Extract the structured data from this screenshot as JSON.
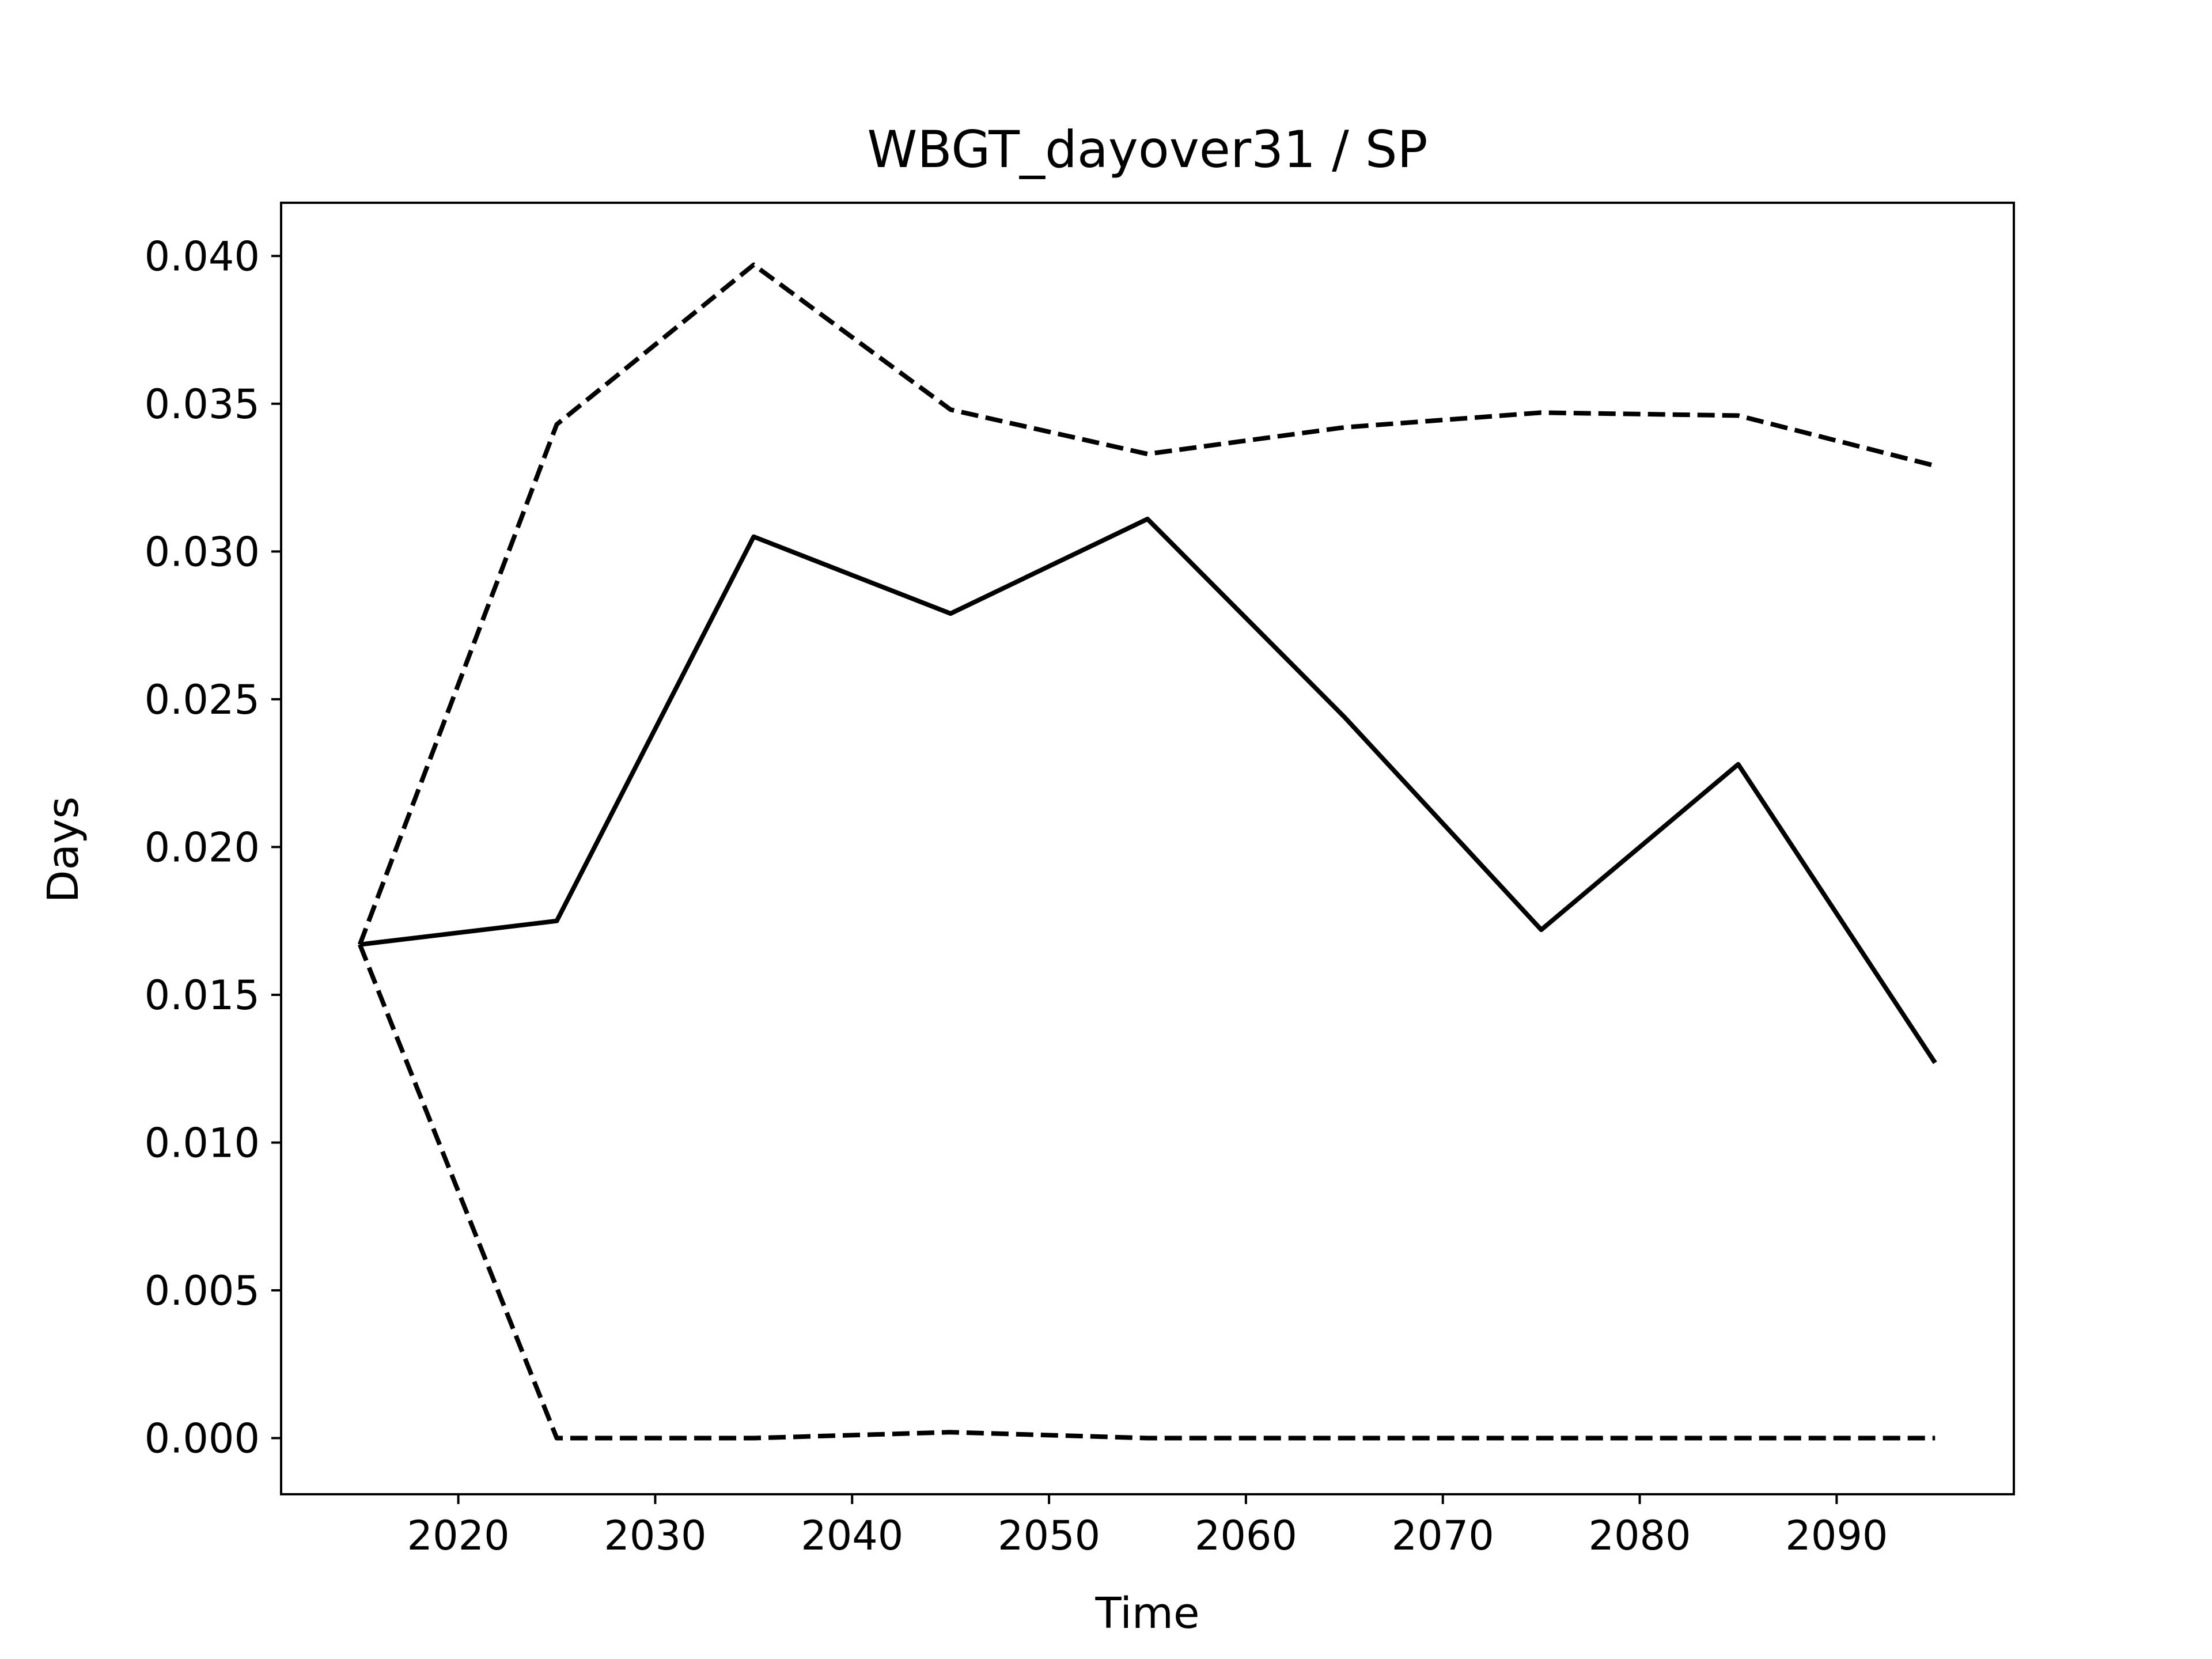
{
  "chart_data": {
    "type": "line",
    "title": "WBGT_dayover31 / SP",
    "xlabel": "Time",
    "ylabel": "Days",
    "xlim": [
      2011,
      2099
    ],
    "ylim": [
      -0.0019,
      0.0418
    ],
    "x_ticks": [
      2020,
      2030,
      2040,
      2050,
      2060,
      2070,
      2080,
      2090
    ],
    "x_tick_labels": [
      "2020",
      "2030",
      "2040",
      "2050",
      "2060",
      "2070",
      "2080",
      "2090"
    ],
    "y_ticks": [
      0.0,
      0.005,
      0.01,
      0.015,
      0.02,
      0.025,
      0.03,
      0.035,
      0.04
    ],
    "y_tick_labels": [
      "0.000",
      "0.005",
      "0.010",
      "0.015",
      "0.020",
      "0.025",
      "0.030",
      "0.035",
      "0.040"
    ],
    "grid": false,
    "x": [
      2015,
      2025,
      2035,
      2045,
      2055,
      2065,
      2075,
      2085,
      2095
    ],
    "series": [
      {
        "style": "solid",
        "color": "#000000",
        "values": [
          0.0167,
          0.0175,
          0.0305,
          0.0279,
          0.0311,
          0.0244,
          0.0172,
          0.0228,
          0.0127
        ]
      },
      {
        "style": "dashed",
        "color": "#000000",
        "values": [
          0.0167,
          0.0343,
          0.0397,
          0.0348,
          0.0333,
          0.0342,
          0.0347,
          0.0346,
          0.0329
        ]
      },
      {
        "style": "dashed",
        "color": "#000000",
        "values": [
          0.0167,
          0.0,
          0.0,
          0.0002,
          0.0,
          0.0,
          0.0,
          0.0,
          0.0
        ]
      }
    ]
  }
}
